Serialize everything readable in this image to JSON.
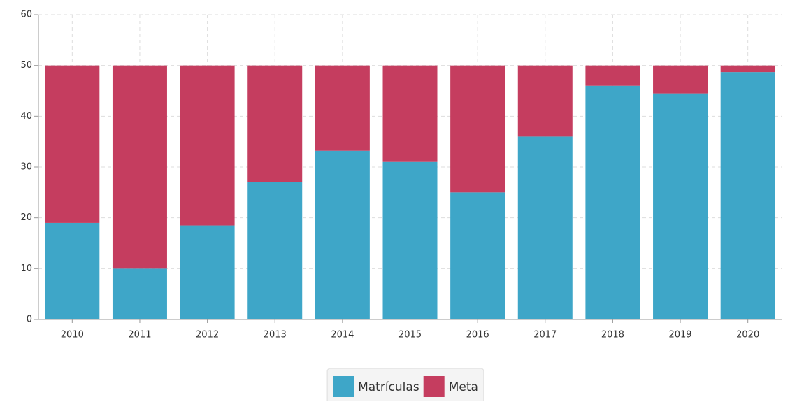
{
  "chart_data": {
    "type": "stacked_bar",
    "categories": [
      "2010",
      "2011",
      "2012",
      "2013",
      "2014",
      "2015",
      "2016",
      "2017",
      "2018",
      "2019",
      "2020"
    ],
    "series": [
      {
        "name": "Matrículas",
        "color": "#3ea6c8",
        "values": [
          19,
          10,
          18.5,
          27,
          33.2,
          31,
          25,
          36,
          46,
          44.5,
          48.7
        ]
      },
      {
        "name": "Meta",
        "color": "#c53d5f",
        "values": [
          31,
          40,
          31.5,
          23,
          16.8,
          19,
          25,
          14,
          4,
          5.5,
          1.3
        ]
      }
    ],
    "ylim": [
      0,
      60
    ],
    "yticks": [
      0,
      10,
      20,
      30,
      40,
      50,
      60
    ],
    "grid": true,
    "legend": "bottom"
  }
}
